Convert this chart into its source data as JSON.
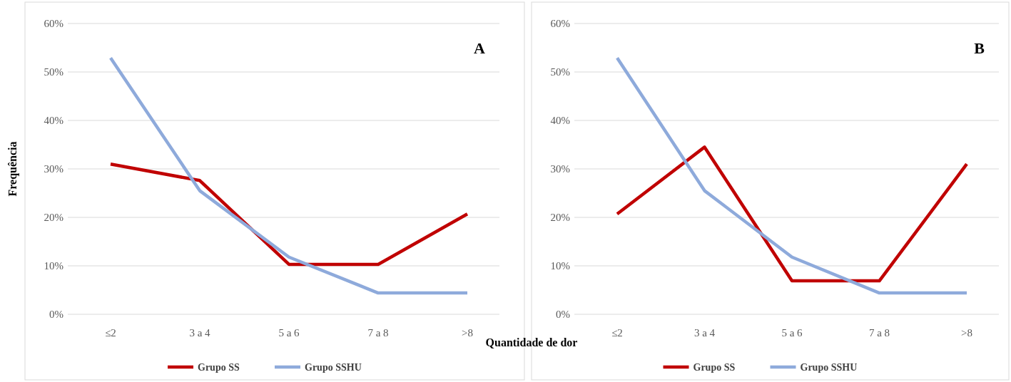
{
  "chart_data": [
    {
      "type": "line",
      "ylabel": "Frequência",
      "xlabel": "Quantidade de dor",
      "annotations": [
        "A"
      ],
      "categories": [
        "≤2",
        "3 a 4",
        "5 a 6",
        "7 a 8",
        ">8"
      ],
      "ylim": [
        0,
        60
      ],
      "yticks": [
        {
          "value": 0,
          "label": "0%"
        },
        {
          "value": 10,
          "label": "10%"
        },
        {
          "value": 20,
          "label": "20%"
        },
        {
          "value": 30,
          "label": "30%"
        },
        {
          "value": 40,
          "label": "40%"
        },
        {
          "value": 50,
          "label": "50%"
        },
        {
          "value": 60,
          "label": "60%"
        }
      ],
      "grid": "y",
      "legend": "bottom",
      "marker": "none",
      "line_style": "solid",
      "series": [
        {
          "name": "Grupo SS",
          "color": "#c00000",
          "values": [
            31,
            27.6,
            10.3,
            10.3,
            20.7
          ]
        },
        {
          "name": "Grupo SSHU",
          "color": "#8eaadb",
          "values": [
            52.9,
            25.5,
            11.8,
            4.4,
            4.4
          ]
        }
      ]
    },
    {
      "type": "line",
      "annotations": [
        "B"
      ],
      "categories": [
        "≤2",
        "3 a 4",
        "5 a 6",
        "7 a 8",
        ">8"
      ],
      "ylim": [
        0,
        60
      ],
      "yticks": [
        {
          "value": 0,
          "label": "0%"
        },
        {
          "value": 10,
          "label": "10%"
        },
        {
          "value": 20,
          "label": "20%"
        },
        {
          "value": 30,
          "label": "30%"
        },
        {
          "value": 40,
          "label": "40%"
        },
        {
          "value": 50,
          "label": "50%"
        },
        {
          "value": 60,
          "label": "60%"
        }
      ],
      "grid": "y",
      "legend": "bottom",
      "marker": "none",
      "line_style": "solid",
      "series": [
        {
          "name": "Grupo SS",
          "color": "#c00000",
          "values": [
            20.7,
            34.5,
            6.9,
            6.9,
            31
          ]
        },
        {
          "name": "Grupo SSHU",
          "color": "#8eaadb",
          "values": [
            52.9,
            25.5,
            11.8,
            4.4,
            4.4
          ]
        }
      ]
    }
  ]
}
